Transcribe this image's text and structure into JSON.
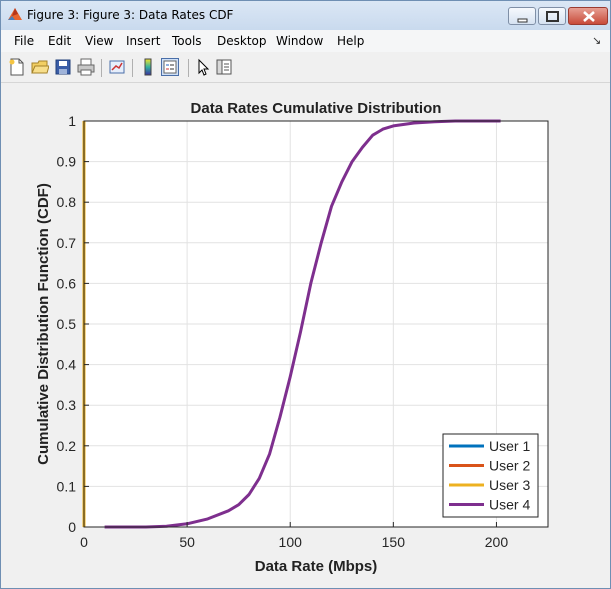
{
  "window": {
    "title": "Figure 3: Figure 3: Data Rates CDF",
    "controls": [
      "minimize",
      "maximize",
      "close"
    ]
  },
  "menubar": {
    "items": [
      "File",
      "Edit",
      "View",
      "Insert",
      "Tools",
      "Desktop",
      "Window",
      "Help"
    ]
  },
  "toolbar": {
    "icons": [
      "new-figure-icon",
      "open-file-icon",
      "save-icon",
      "print-icon",
      "link-plot-icon",
      "colorbar-icon",
      "legend-icon",
      "pointer-icon",
      "property-editor-icon"
    ]
  },
  "chart_data": {
    "type": "line",
    "title": "Data Rates Cumulative Distribution",
    "xlabel": "Data Rate (Mbps)",
    "ylabel": "Cumulative Distribution Function (CDF)",
    "xlim": [
      0,
      225
    ],
    "ylim": [
      0,
      1
    ],
    "xticks": [
      "0",
      "50",
      "100",
      "150",
      "200"
    ],
    "yticks": [
      "0",
      "0.1",
      "0.2",
      "0.3",
      "0.4",
      "0.5",
      "0.6",
      "0.7",
      "0.8",
      "0.9",
      "1"
    ],
    "grid": true,
    "legend_position": "bottom-right",
    "series": [
      {
        "name": "User 1",
        "color": "#0072BD",
        "x": [
          0,
          0
        ],
        "y": [
          0,
          1
        ]
      },
      {
        "name": "User 2",
        "color": "#D95319",
        "x": [
          0,
          0
        ],
        "y": [
          0,
          1
        ]
      },
      {
        "name": "User 3",
        "color": "#EDB120",
        "x": [
          0,
          0
        ],
        "y": [
          0,
          1
        ]
      },
      {
        "name": "User 4",
        "color": "#7E2F8E",
        "x": [
          10,
          30,
          40,
          50,
          60,
          70,
          75,
          80,
          85,
          90,
          95,
          100,
          105,
          110,
          115,
          120,
          125,
          130,
          135,
          140,
          145,
          150,
          160,
          170,
          180,
          190,
          202
        ],
        "y": [
          0,
          0,
          0.002,
          0.008,
          0.02,
          0.04,
          0.055,
          0.08,
          0.12,
          0.18,
          0.27,
          0.37,
          0.48,
          0.6,
          0.7,
          0.79,
          0.85,
          0.9,
          0.935,
          0.965,
          0.98,
          0.988,
          0.995,
          0.998,
          1,
          1,
          1
        ]
      }
    ]
  }
}
